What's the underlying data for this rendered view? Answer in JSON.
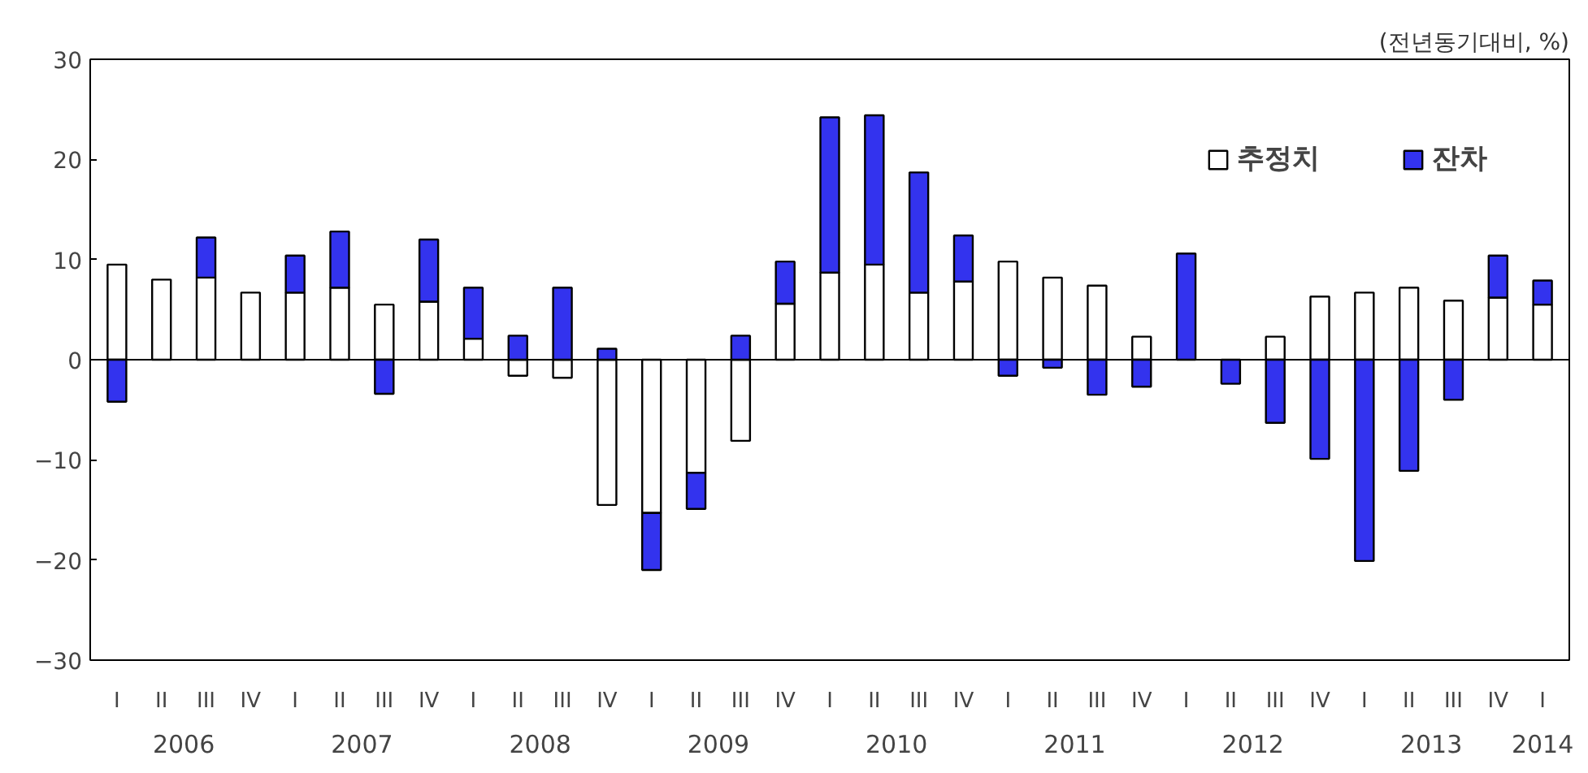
{
  "chart_data": {
    "type": "bar",
    "stacked": true,
    "ylabel": "(전년동기대비, %)",
    "categories": [
      "I",
      "II",
      "III",
      "IV",
      "I",
      "II",
      "III",
      "IV",
      "I",
      "II",
      "III",
      "IV",
      "I",
      "II",
      "III",
      "IV",
      "I",
      "II",
      "III",
      "IV",
      "I",
      "II",
      "III",
      "IV",
      "I",
      "II",
      "III",
      "IV",
      "I",
      "II",
      "III",
      "IV",
      "I"
    ],
    "series": [
      {
        "name": "추정치",
        "color": "#ffffff",
        "values": [
          9.5,
          8.0,
          8.2,
          6.7,
          6.7,
          7.2,
          5.5,
          5.8,
          2.1,
          -1.6,
          -1.8,
          -14.5,
          -15.3,
          -11.3,
          -8.1,
          5.6,
          8.7,
          9.5,
          6.7,
          7.8,
          9.8,
          8.2,
          7.4,
          2.3,
          0,
          0,
          2.3,
          6.3,
          6.7,
          7.2,
          5.9,
          6.2,
          5.5
        ]
      },
      {
        "name": "잔차",
        "color": "#3333ee",
        "values": [
          -4.2,
          0,
          4.0,
          0,
          3.7,
          5.6,
          -3.4,
          6.2,
          5.1,
          2.4,
          7.2,
          1.1,
          -5.7,
          -3.6,
          2.4,
          4.2,
          15.5,
          14.9,
          12.0,
          4.6,
          -1.6,
          -0.8,
          -3.5,
          -2.7,
          10.6,
          -2.4,
          -6.3,
          -9.9,
          -20.1,
          -11.1,
          -4.0,
          4.2,
          2.4
        ]
      }
    ],
    "annotations": [
      "2006",
      "2007",
      "2008",
      "2009",
      "2010",
      "2011",
      "2012",
      "2013",
      "2014"
    ],
    "ref_lines": [
      {
        "axis": "y",
        "value": 0,
        "color": "#000000"
      }
    ],
    "ylim": [
      -30,
      30
    ],
    "yticks": [
      -30,
      -20,
      -10,
      0,
      10,
      20,
      30
    ],
    "legend": "top right",
    "grid": false
  }
}
